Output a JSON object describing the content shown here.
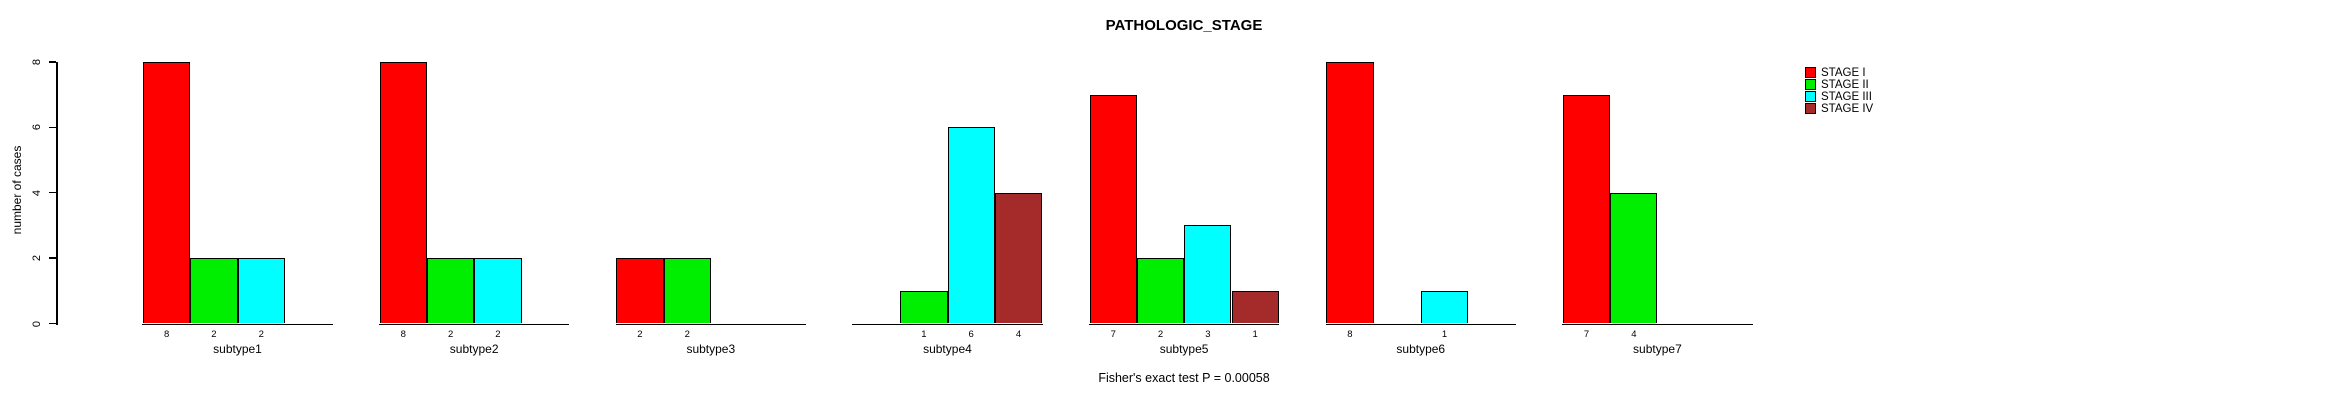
{
  "title": "PATHOLOGIC_STAGE",
  "footer_annotation": "Fisher's exact test P = 0.00058",
  "chart_data": {
    "type": "bar",
    "title": "PATHOLOGIC_STAGE",
    "xlabel": "",
    "ylabel": "number of cases",
    "ylim": [
      0,
      8
    ],
    "yticks": [
      "0",
      "2",
      "4",
      "6",
      "8"
    ],
    "grid": false,
    "legend_position": "right",
    "bar_value_labels": true,
    "annotation": "Fisher's exact test P = 0.00058",
    "categories": [
      "subtype1",
      "subtype2",
      "subtype3",
      "subtype4",
      "subtype5",
      "subtype6",
      "subtype7"
    ],
    "series": [
      {
        "name": "STAGE I",
        "color": "#FF0000",
        "values": [
          8,
          8,
          2,
          0,
          7,
          8,
          7
        ]
      },
      {
        "name": "STAGE II",
        "color": "#00EE00",
        "values": [
          2,
          2,
          2,
          1,
          2,
          0,
          4
        ]
      },
      {
        "name": "STAGE III",
        "color": "#00FFFF",
        "values": [
          2,
          2,
          0,
          6,
          3,
          1,
          0
        ]
      },
      {
        "name": "STAGE IV",
        "color": "#A52A2A",
        "values": [
          0,
          0,
          0,
          4,
          1,
          0,
          0
        ]
      }
    ],
    "colors": {
      "bar_border": "#000000",
      "axis": "#000000",
      "text": "#000000",
      "background": "#FFFFFF"
    }
  }
}
